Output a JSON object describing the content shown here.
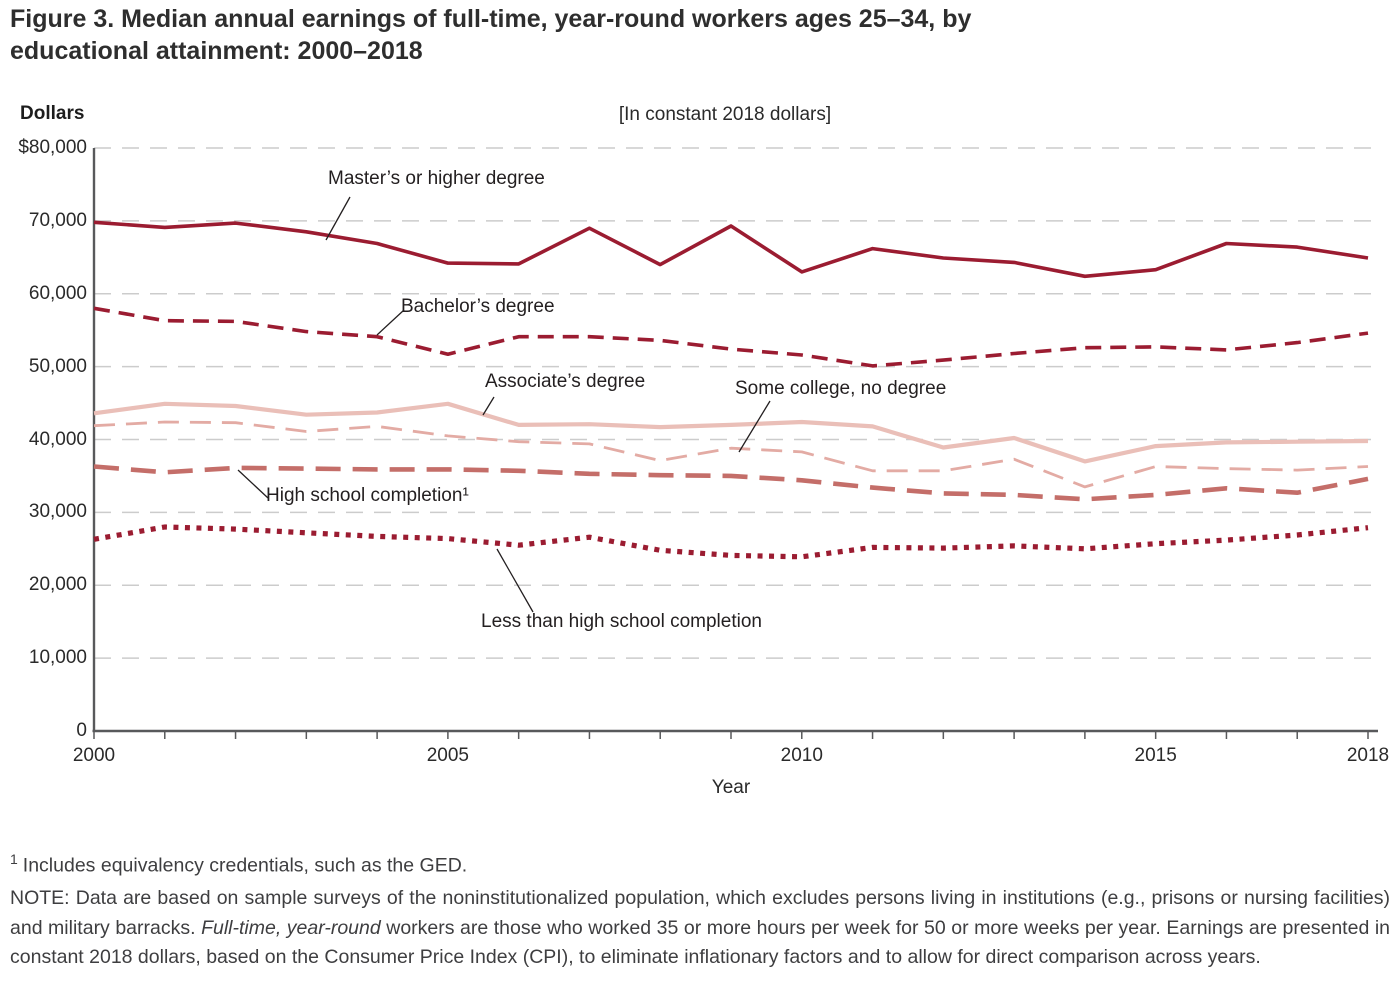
{
  "figure": {
    "title_line1": "Figure 3. Median annual earnings of full-time, year-round workers ages 25–34, by",
    "title_line2": "educational attainment: 2000–2018",
    "y_axis_title": "Dollars",
    "subtitle": "[In constant 2018 dollars]",
    "x_axis_title": "Year"
  },
  "chart_data": {
    "type": "line",
    "title": "Median annual earnings of full-time, year-round workers ages 25–34, by educational attainment: 2000–2018",
    "units": "constant 2018 dollars",
    "xlabel": "Year",
    "ylabel": "Dollars",
    "xlim": [
      2000,
      2018
    ],
    "ylim": [
      0,
      80000
    ],
    "grid": "horizontal-dashed",
    "x": [
      2000,
      2001,
      2002,
      2003,
      2004,
      2005,
      2006,
      2007,
      2008,
      2009,
      2010,
      2011,
      2012,
      2013,
      2014,
      2015,
      2016,
      2017,
      2018
    ],
    "x_ticks": [
      {
        "label": "2000",
        "value": 2000
      },
      {
        "label": "2005",
        "value": 2005
      },
      {
        "label": "2010",
        "value": 2010
      },
      {
        "label": "2015",
        "value": 2015
      },
      {
        "label": "2018",
        "value": 2018
      }
    ],
    "y_ticks": [
      {
        "label": "$80,000",
        "value": 80000
      },
      {
        "label": "70,000",
        "value": 70000
      },
      {
        "label": "60,000",
        "value": 60000
      },
      {
        "label": "50,000",
        "value": 50000
      },
      {
        "label": "40,000",
        "value": 40000
      },
      {
        "label": "30,000",
        "value": 30000
      },
      {
        "label": "20,000",
        "value": 20000
      },
      {
        "label": "10,000",
        "value": 10000
      },
      {
        "label": "0",
        "value": 0
      }
    ],
    "series": [
      {
        "name": "Master’s or higher degree",
        "style": "solid",
        "color": "#9b1c31",
        "values": [
          69800,
          69100,
          69700,
          68500,
          66900,
          64200,
          64100,
          69000,
          64000,
          69300,
          63000,
          66200,
          64900,
          64300,
          62400,
          63300,
          66900,
          66400,
          64900
        ]
      },
      {
        "name": "Bachelor’s degree",
        "style": "dashed",
        "color": "#9b1c31",
        "values": [
          58000,
          56300,
          56200,
          54800,
          54100,
          51700,
          54100,
          54100,
          53600,
          52400,
          51600,
          50100,
          50900,
          51800,
          52600,
          52700,
          52300,
          53300,
          54600
        ]
      },
      {
        "name": "Associate’s degree",
        "style": "solid",
        "color": "#eabfb8",
        "values": [
          43600,
          44900,
          44600,
          43400,
          43700,
          44900,
          42000,
          42100,
          41700,
          42000,
          42400,
          41800,
          38900,
          40200,
          37000,
          39100,
          39600,
          39700,
          39800
        ]
      },
      {
        "name": "Some college, no degree",
        "style": "dashed",
        "color": "#e3aba4",
        "values": [
          41900,
          42400,
          42300,
          41100,
          41800,
          40500,
          39700,
          39400,
          37100,
          38800,
          38300,
          35700,
          35700,
          37300,
          33500,
          36300,
          36000,
          35800,
          36300
        ]
      },
      {
        "name": "High school completion¹",
        "style": "dashed",
        "color": "#c46e69",
        "values": [
          36300,
          35500,
          36100,
          36000,
          35900,
          35900,
          35700,
          35300,
          35100,
          35000,
          34400,
          33400,
          32600,
          32400,
          31800,
          32400,
          33300,
          32700,
          34600
        ]
      },
      {
        "name": "Less than high school completion",
        "style": "dotted",
        "color": "#9b1c31",
        "values": [
          26300,
          28000,
          27700,
          27200,
          26700,
          26400,
          25500,
          26600,
          24800,
          24100,
          23900,
          25200,
          25100,
          25400,
          25000,
          25700,
          26200,
          26900,
          27900
        ]
      }
    ]
  },
  "footnotes": {
    "footnote1_marker": "1",
    "footnote1_text": "Includes equivalency credentials, such as the GED.",
    "note_prefix": "NOTE: Data are based on sample surveys of the noninstitutionalized population, which excludes persons living in institutions (e.g., prisons or nursing facilities) and military barracks. ",
    "note_italic": "Full-time, year-round",
    "note_suffix": " workers are those who worked 35 or more hours per week for 50 or more weeks per year. Earnings are presented in constant 2018 dollars, based on the Consumer Price Index (CPI), to eliminate inflationary factors and to allow for direct comparison across years."
  }
}
